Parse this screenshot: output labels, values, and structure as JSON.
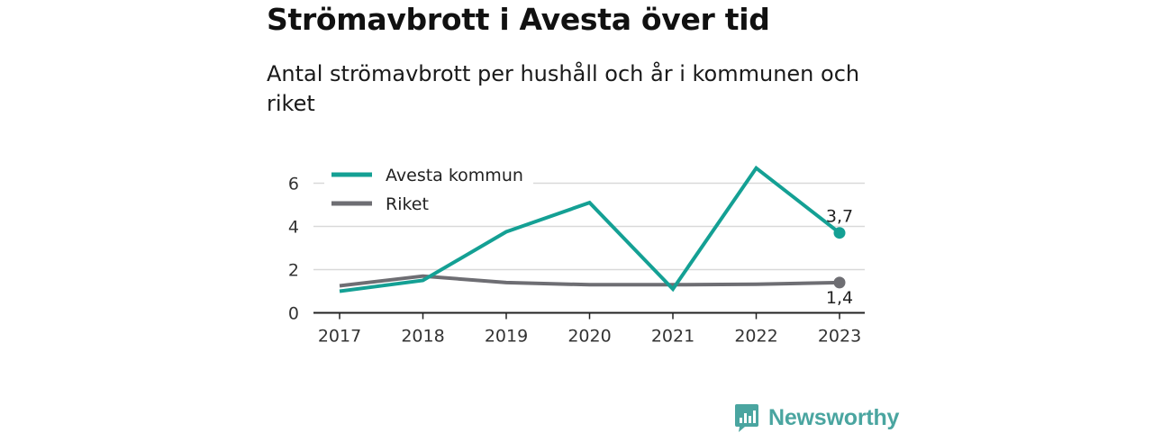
{
  "title": "Strömavbrott i Avesta över tid",
  "subtitle": "Antal strömavbrott per hushåll och år i kommunen och riket",
  "brand": {
    "name": "Newsworthy",
    "icon": "newsworthy-logo-icon",
    "color": "#4aa5a0"
  },
  "colors": {
    "avesta": "#14a094",
    "riket": "#6e6e73",
    "grid": "#d9d9d9",
    "axis": "#222222"
  },
  "chart_data": {
    "type": "line",
    "title": "Strömavbrott i Avesta över tid",
    "subtitle": "Antal strömavbrott per hushåll och år i kommunen och riket",
    "x": [
      "2017",
      "2018",
      "2019",
      "2020",
      "2021",
      "2022",
      "2023"
    ],
    "ylim": [
      0,
      7
    ],
    "yticks": [
      0,
      2,
      4,
      6
    ],
    "ytick_labels": [
      "0",
      "2",
      "4",
      "6"
    ],
    "grid": true,
    "legend_position": "top-left",
    "series": [
      {
        "name": "Avesta kommun",
        "color": "#14a094",
        "values": [
          1.0,
          1.5,
          3.75,
          5.1,
          1.1,
          6.7,
          3.7
        ],
        "end_label": "3,7"
      },
      {
        "name": "Riket",
        "color": "#6e6e73",
        "values": [
          1.25,
          1.7,
          1.4,
          1.3,
          1.3,
          1.32,
          1.4
        ],
        "end_label": "1,4"
      }
    ]
  }
}
